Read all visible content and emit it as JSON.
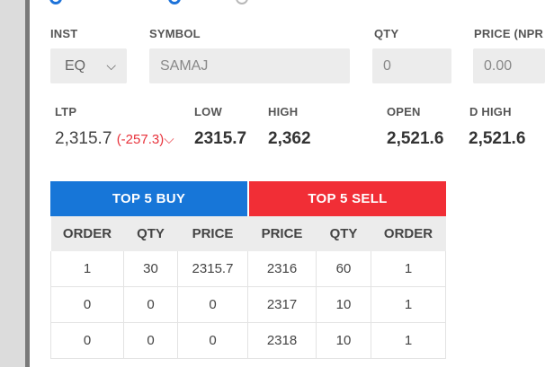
{
  "form": {
    "inst": {
      "label": "INST",
      "value": "EQ"
    },
    "symbol": {
      "label": "SYMBOL",
      "value": "SAMAJ"
    },
    "qty": {
      "label": "QTY",
      "value": "0"
    },
    "price": {
      "label": "PRICE (NPR",
      "value": "0.00"
    }
  },
  "quote": {
    "ltp": {
      "label": "LTP",
      "value": "2,315.7",
      "change": "(-257.3)"
    },
    "low": {
      "label": "LOW",
      "value": "2315.7"
    },
    "high": {
      "label": "HIGH",
      "value": "2,362"
    },
    "open": {
      "label": "OPEN",
      "value": "2,521.6"
    },
    "dhigh": {
      "label": "D HIGH",
      "value": "2,521.6"
    }
  },
  "depth": {
    "buy_title": "TOP 5 BUY",
    "sell_title": "TOP 5 SELL",
    "columns": [
      "ORDER",
      "QTY",
      "PRICE",
      "PRICE",
      "QTY",
      "ORDER"
    ],
    "rows": [
      [
        "1",
        "30",
        "2315.7",
        "2316",
        "60",
        "1"
      ],
      [
        "0",
        "0",
        "0",
        "2317",
        "10",
        "1"
      ],
      [
        "0",
        "0",
        "0",
        "2318",
        "10",
        "1"
      ]
    ]
  },
  "colors": {
    "buy": "#1776d8",
    "sell": "#f12e36",
    "change_down": "#e8323b",
    "radio_selected": "#1e73d9"
  },
  "icons": {
    "inst_dropdown": "chevron-down-icon",
    "change_direction": "chevron-down-icon"
  }
}
